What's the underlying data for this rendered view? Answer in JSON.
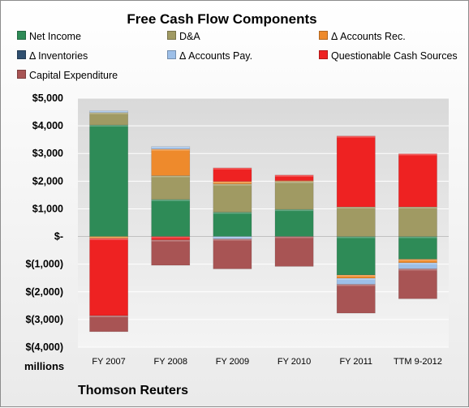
{
  "chart_data": {
    "type": "bar",
    "stacked": true,
    "title": "Free Cash Flow Components",
    "categories": [
      "FY 2007",
      "FY 2008",
      "FY 2009",
      "FY 2010",
      "FY 2011",
      "TTM 9-2012"
    ],
    "y_tick_labels": [
      "$5,000",
      "$4,000",
      "$3,000",
      "$2,000",
      "$1,000",
      "$-",
      "$(1,000)",
      "$(2,000)",
      "$(3,000)",
      "$(4,000)"
    ],
    "ylim": [
      -4000,
      5000
    ],
    "ylabel": "millions",
    "grid": true,
    "legend_position": "top",
    "series": [
      {
        "name": "Net Income",
        "color": "#2e8b57",
        "values": [
          4030,
          1340,
          880,
          980,
          -1390,
          -820
        ]
      },
      {
        "name": "D&A",
        "color": "#a09a63",
        "values": [
          450,
          860,
          1020,
          1010,
          1070,
          1070
        ]
      },
      {
        "name": "Δ Accounts Rec.",
        "color": "#ee8a2c",
        "values": [
          -70,
          960,
          90,
          30,
          -120,
          -130
        ]
      },
      {
        "name": "Δ Inventories",
        "color": "#2f4f6f",
        "values": [
          0,
          0,
          0,
          0,
          0,
          0
        ]
      },
      {
        "name": "Δ Accounts Pay.",
        "color": "#9dbfe8",
        "values": [
          60,
          90,
          -90,
          0,
          -220,
          -220
        ]
      },
      {
        "name": "Questionable Cash Sources",
        "color": "#ee2222",
        "values": [
          -2790,
          -120,
          490,
          200,
          2560,
          1920
        ]
      },
      {
        "name": "Capital Expenditure",
        "color": "#a85454",
        "values": [
          -580,
          -920,
          -1080,
          -1080,
          -1040,
          -1080
        ]
      }
    ]
  },
  "footer": {
    "unit_label": "millions",
    "source": "Thomson Reuters"
  }
}
